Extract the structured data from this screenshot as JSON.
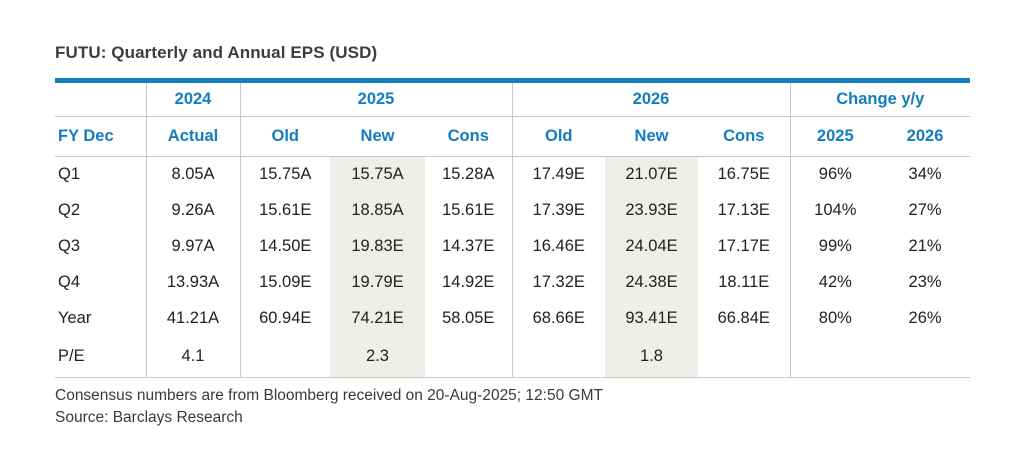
{
  "title": "FUTU: Quarterly and Annual EPS (USD)",
  "colors": {
    "accent_blue": "#137dbd",
    "rule_blue": "#1580bf",
    "highlight_bg": "#efeee9",
    "border_gray": "#c8c8c8",
    "title_text": "#3d3d3d",
    "body_text": "#222222"
  },
  "table": {
    "group_headers": {
      "fy": "",
      "y2024": "2024",
      "y2025": "2025",
      "y2026": "2026",
      "change": "Change y/y"
    },
    "column_headers": [
      "FY Dec",
      "Actual",
      "Old",
      "New",
      "Cons",
      "Old",
      "New",
      "Cons",
      "2025",
      "2026"
    ],
    "rows": [
      {
        "label": "Q1",
        "cells": [
          "8.05A",
          "15.75A",
          "15.75A",
          "15.28A",
          "17.49E",
          "21.07E",
          "16.75E",
          "96%",
          "34%"
        ]
      },
      {
        "label": "Q2",
        "cells": [
          "9.26A",
          "15.61E",
          "18.85A",
          "15.61E",
          "17.39E",
          "23.93E",
          "17.13E",
          "104%",
          "27%"
        ]
      },
      {
        "label": "Q3",
        "cells": [
          "9.97A",
          "14.50E",
          "19.83E",
          "14.37E",
          "16.46E",
          "24.04E",
          "17.17E",
          "99%",
          "21%"
        ]
      },
      {
        "label": "Q4",
        "cells": [
          "13.93A",
          "15.09E",
          "19.79E",
          "14.92E",
          "17.32E",
          "24.38E",
          "18.11E",
          "42%",
          "23%"
        ]
      },
      {
        "label": "Year",
        "cells": [
          "41.21A",
          "60.94E",
          "74.21E",
          "58.05E",
          "68.66E",
          "93.41E",
          "66.84E",
          "80%",
          "26%"
        ]
      },
      {
        "label": "P/E",
        "cells": [
          "4.1",
          "",
          "2.3",
          "",
          "",
          "1.8",
          "",
          "",
          ""
        ]
      }
    ]
  },
  "footnotes": {
    "consensus": "Consensus numbers are from Bloomberg received on 20-Aug-2025; 12:50 GMT",
    "source": "Source: Barclays Research"
  }
}
